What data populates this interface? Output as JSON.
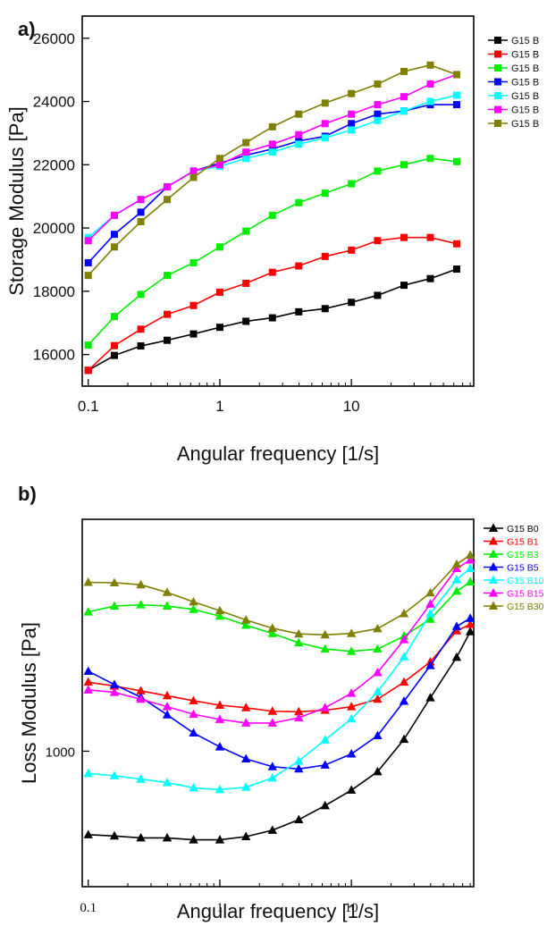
{
  "figure": {
    "panels": [
      "a)",
      "b)"
    ]
  },
  "chart_data": [
    {
      "type": "line",
      "panel": "a)",
      "marker": "square",
      "xlabel": "Angular frequency [1/s]",
      "ylabel": "Storage Modulus [Pa]",
      "xscale": "log",
      "xlim": [
        0.09,
        85
      ],
      "ylim": [
        15000,
        26700
      ],
      "xticks": [
        0.1,
        1,
        10
      ],
      "xtick_labels": [
        "0.1",
        "1",
        "10"
      ],
      "yticks": [
        16000,
        18000,
        20000,
        22000,
        24000,
        26000
      ],
      "ytick_labels": [
        "16000",
        "18000",
        "20000",
        "22000",
        "24000",
        "26000"
      ],
      "legend_position": "right",
      "x": [
        0.1,
        0.158,
        0.251,
        0.398,
        0.631,
        1.0,
        1.58,
        2.51,
        3.98,
        6.31,
        10,
        15.8,
        25.1,
        39.8,
        63.1
      ],
      "series": [
        {
          "name": "G15 B0",
          "legend_label": "G15 B",
          "color": "#000000",
          "values": [
            15500,
            15970,
            16270,
            16450,
            16650,
            16860,
            17050,
            17160,
            17350,
            17450,
            17650,
            17870,
            18190,
            18400,
            18700
          ]
        },
        {
          "name": "G15 B1",
          "legend_label": "G15 B",
          "color": "#ff0000",
          "values": [
            15500,
            16280,
            16800,
            17270,
            17550,
            17970,
            18250,
            18600,
            18800,
            19100,
            19300,
            19600,
            19700,
            19700,
            19500
          ]
        },
        {
          "name": "G15 B3",
          "legend_label": "G15 B",
          "color": "#00ee00",
          "values": [
            16300,
            17200,
            17900,
            18500,
            18900,
            19400,
            19900,
            20400,
            20800,
            21100,
            21400,
            21800,
            22000,
            22200,
            22100
          ]
        },
        {
          "name": "G15 B5",
          "legend_label": "G15 B",
          "color": "#0000ff",
          "values": [
            18900,
            19800,
            20500,
            21300,
            21800,
            22050,
            22300,
            22500,
            22750,
            22900,
            23300,
            23600,
            23700,
            23900,
            23900
          ]
        },
        {
          "name": "G15 B10",
          "legend_label": "G15 B",
          "color": "#00ffff",
          "values": [
            19700,
            20400,
            20900,
            21300,
            21800,
            21950,
            22200,
            22400,
            22650,
            22850,
            23100,
            23400,
            23700,
            24000,
            24200
          ]
        },
        {
          "name": "G15 B15",
          "legend_label": "G15 B",
          "color": "#ff00ff",
          "values": [
            19600,
            20400,
            20900,
            21300,
            21800,
            22000,
            22400,
            22650,
            22950,
            23300,
            23600,
            23900,
            24150,
            24550,
            24850
          ]
        },
        {
          "name": "G15 B30",
          "legend_label": "G15 B",
          "color": "#808000",
          "values": [
            18500,
            19400,
            20200,
            20900,
            21600,
            22200,
            22700,
            23200,
            23600,
            23950,
            24250,
            24550,
            24950,
            25150,
            24850
          ]
        }
      ]
    },
    {
      "type": "line",
      "panel": "b)",
      "marker": "triangle",
      "xlabel": "Angular frequency [1/s]",
      "ylabel": "Loss Modulus [Pa]",
      "xscale": "log",
      "yscale": "log",
      "xlim": [
        0.09,
        85
      ],
      "ylim": [
        780,
        1530
      ],
      "xticks": [
        0.1,
        1,
        10
      ],
      "xtick_labels": [
        "0.1",
        "1",
        "10"
      ],
      "yticks": [
        1000
      ],
      "ytick_labels": [
        "1000"
      ],
      "legend_position": "right",
      "x": [
        0.1,
        0.158,
        0.251,
        0.398,
        0.631,
        1.0,
        1.58,
        2.51,
        3.98,
        6.31,
        10,
        15.8,
        25.1,
        39.8,
        63.1,
        80
      ],
      "series": [
        {
          "name": "G15 B0",
          "color": "#000000",
          "values": [
            858,
            856,
            853,
            853,
            850,
            850,
            855,
            865,
            882,
            905,
            931,
            963,
            1022,
            1103,
            1188,
            1245
          ]
        },
        {
          "name": "G15 B1",
          "color": "#ff0000",
          "values": [
            1135,
            1127,
            1117,
            1107,
            1097,
            1088,
            1083,
            1076,
            1075,
            1078,
            1085,
            1100,
            1135,
            1178,
            1247,
            1262
          ]
        },
        {
          "name": "G15 B3",
          "color": "#00ee00",
          "values": [
            1291,
            1305,
            1308,
            1305,
            1297,
            1281,
            1260,
            1241,
            1220,
            1206,
            1201,
            1206,
            1235,
            1274,
            1341,
            1364
          ]
        },
        {
          "name": "G15 B5",
          "color": "#0000ff",
          "values": [
            1158,
            1130,
            1104,
            1069,
            1034,
            1008,
            986,
            972,
            968,
            975,
            995,
            1029,
            1096,
            1170,
            1257,
            1276
          ]
        },
        {
          "name": "G15 B10",
          "color": "#00ffff",
          "values": [
            960,
            956,
            950,
            944,
            935,
            932,
            936,
            952,
            982,
            1021,
            1061,
            1115,
            1189,
            1287,
            1370,
            1398
          ]
        },
        {
          "name": "G15 B15",
          "color": "#ff00ff",
          "values": [
            1119,
            1114,
            1100,
            1085,
            1070,
            1060,
            1053,
            1053,
            1063,
            1083,
            1112,
            1155,
            1227,
            1310,
            1398,
            1420
          ]
        },
        {
          "name": "G15 B30",
          "color": "#808000",
          "values": [
            1363,
            1362,
            1357,
            1338,
            1315,
            1294,
            1272,
            1253,
            1240,
            1238,
            1241,
            1252,
            1287,
            1337,
            1409,
            1433
          ]
        }
      ]
    }
  ]
}
